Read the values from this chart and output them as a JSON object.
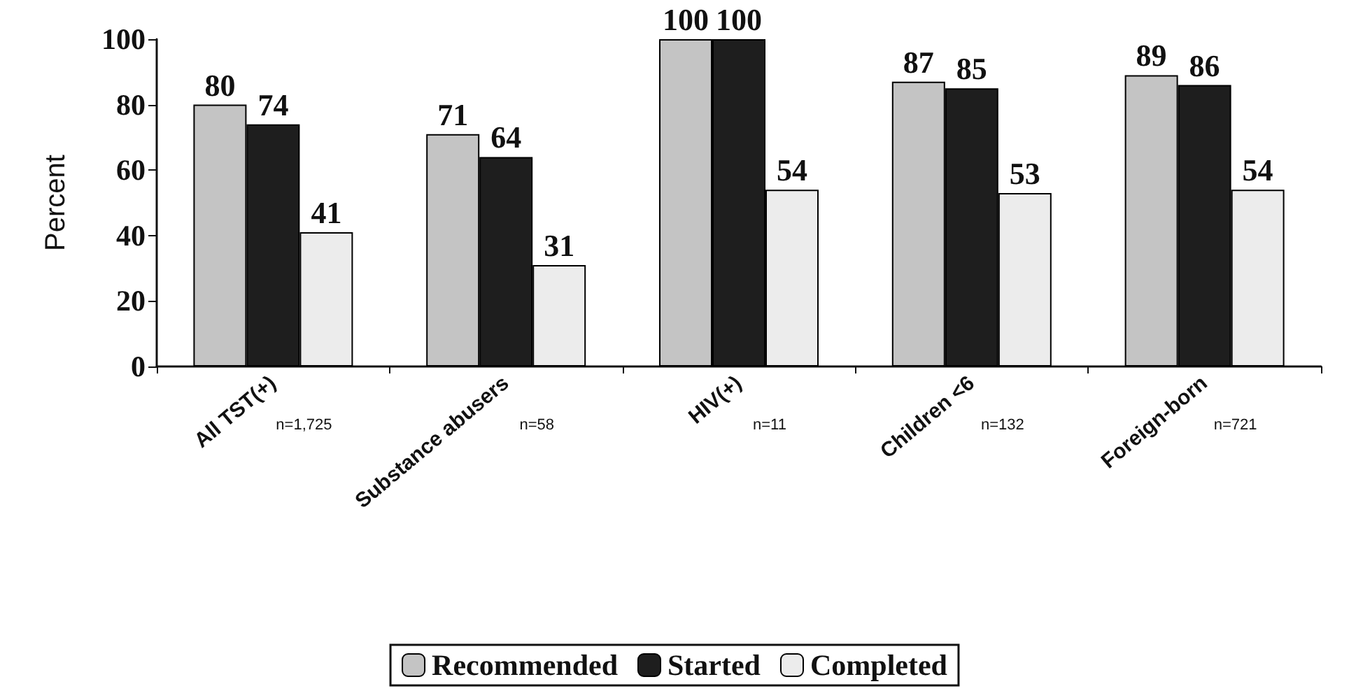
{
  "chart_data": {
    "type": "bar",
    "ylabel": "Percent",
    "categories": [
      "All TST(+)",
      "Substance abusers",
      "HIV(+)",
      "Children <6",
      "Foreign-born"
    ],
    "series": [
      {
        "name": "Recommended",
        "color": "#c4c4c4",
        "values": [
          80,
          71,
          100,
          87,
          89
        ]
      },
      {
        "name": "Started",
        "color": "#1e1e1e",
        "values": [
          74,
          64,
          100,
          85,
          86
        ]
      },
      {
        "name": "Completed",
        "color": "#ececec",
        "values": [
          41,
          31,
          54,
          53,
          54
        ]
      }
    ],
    "ylim": [
      0,
      100
    ],
    "yticks": [
      0,
      20,
      40,
      60,
      80,
      100
    ],
    "grid": false,
    "legend": "bottom",
    "data_labels": true,
    "annotations": [
      "n=1,725",
      "n=58",
      "n=11",
      "n=132",
      "n=721"
    ]
  }
}
